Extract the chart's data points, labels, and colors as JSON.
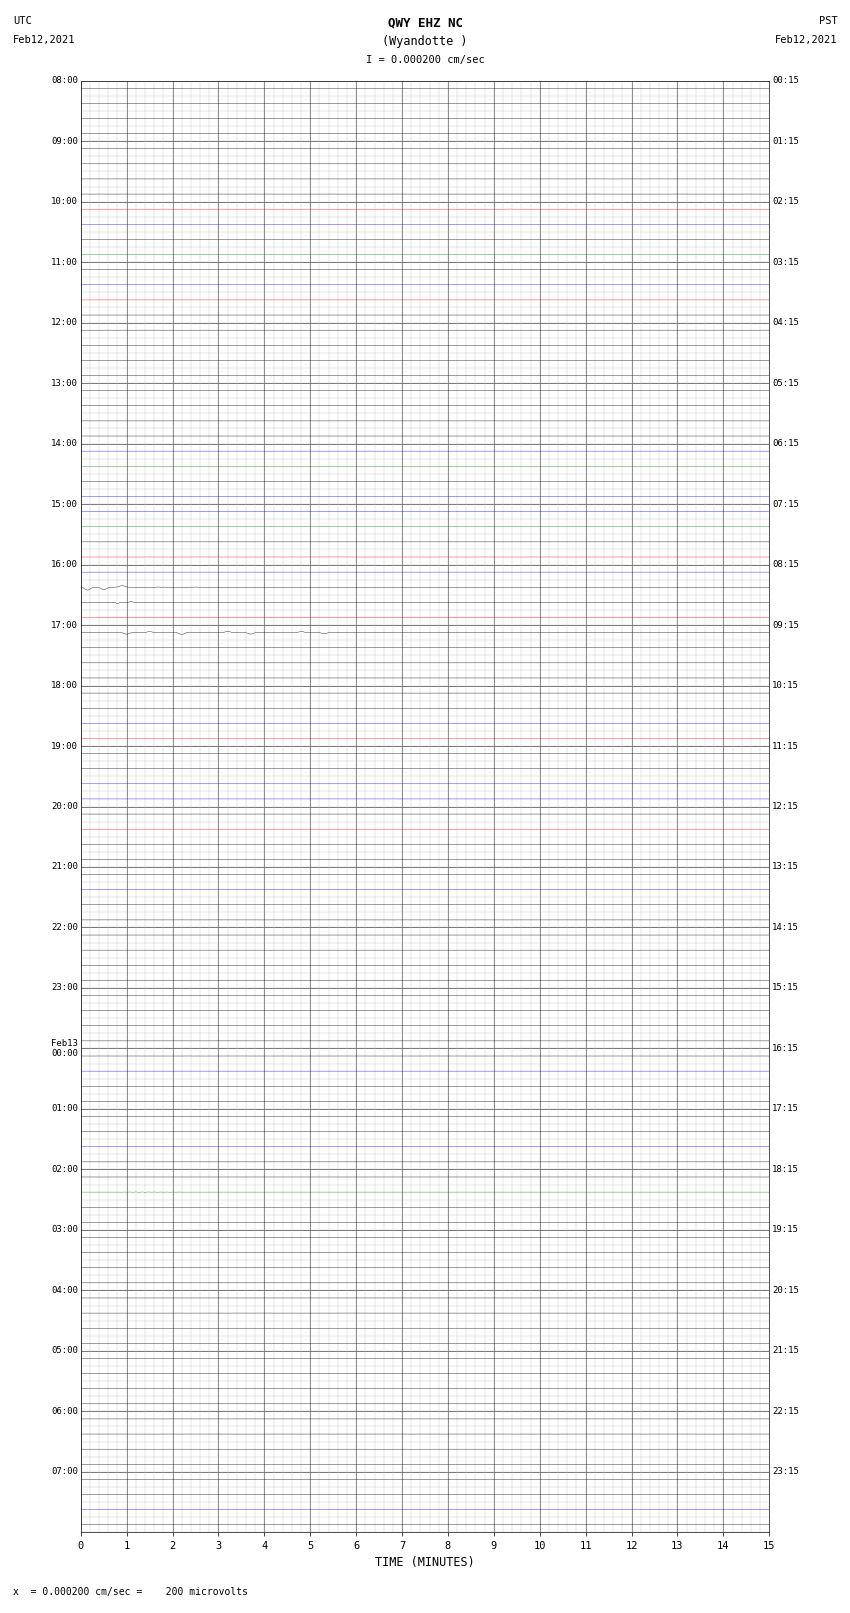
{
  "title_line1": "QWY EHZ NC",
  "title_line2": "(Wyandotte )",
  "scale_label": "I = 0.000200 cm/sec",
  "left_label_top": "UTC",
  "left_label_date": "Feb12,2021",
  "right_label_top": "PST",
  "right_label_date": "Feb12,2021",
  "bottom_label": "TIME (MINUTES)",
  "bottom_note": "x  = 0.000200 cm/sec =    200 microvolts",
  "utc_times": [
    "08:00",
    "09:00",
    "10:00",
    "11:00",
    "12:00",
    "13:00",
    "14:00",
    "15:00",
    "16:00",
    "17:00",
    "18:00",
    "19:00",
    "20:00",
    "21:00",
    "22:00",
    "23:00",
    "Feb13\n00:00",
    "01:00",
    "02:00",
    "03:00",
    "04:00",
    "05:00",
    "06:00",
    "07:00"
  ],
  "pst_times": [
    "00:15",
    "01:15",
    "02:15",
    "03:15",
    "04:15",
    "05:15",
    "06:15",
    "07:15",
    "08:15",
    "09:15",
    "10:15",
    "11:15",
    "12:15",
    "13:15",
    "14:15",
    "15:15",
    "16:15",
    "17:15",
    "18:15",
    "19:15",
    "20:15",
    "21:15",
    "22:15",
    "23:15"
  ],
  "n_rows": 24,
  "n_sub": 4,
  "n_minutes": 15,
  "bg_color": "#ffffff",
  "grid_color": "#888888",
  "sub_grid_color": "#cccccc"
}
